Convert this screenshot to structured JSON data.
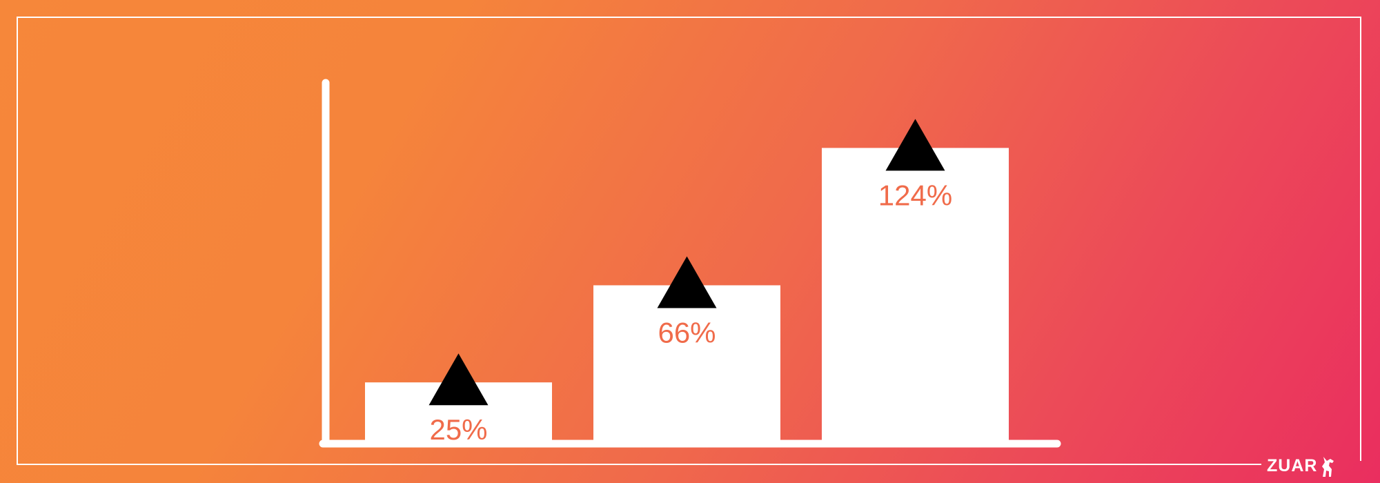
{
  "brand": {
    "logo_text": "ZUAR"
  },
  "colors": {
    "background_start": "#f6873a",
    "background_end": "#ea2e5f",
    "bar": "#ffffff",
    "axis": "#ffffff",
    "arrow": "#000000",
    "label": "#f06b4a"
  },
  "chart_data": {
    "type": "bar",
    "categories": [
      "",
      "",
      ""
    ],
    "values": [
      25,
      66,
      124
    ],
    "data_labels": [
      "25%",
      "66%",
      "124%"
    ],
    "title": "",
    "xlabel": "",
    "ylabel": "",
    "ylim": [
      0,
      155
    ],
    "grid": false,
    "legend": "none",
    "annotations": [
      "up-arrow-icon",
      "up-arrow-icon",
      "up-arrow-icon"
    ]
  }
}
